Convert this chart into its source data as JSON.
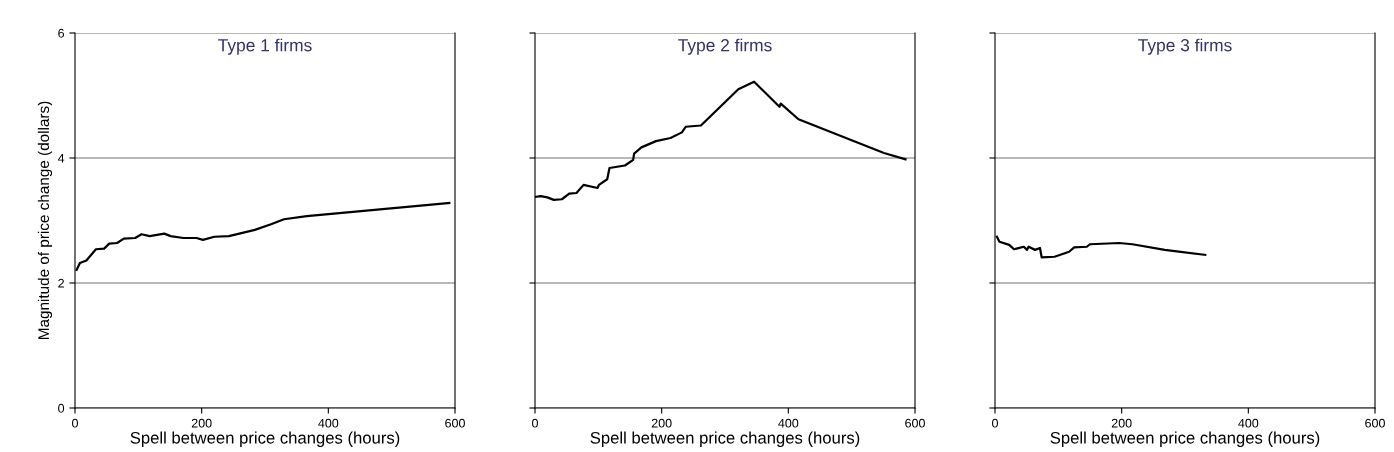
{
  "chart_data": [
    {
      "type": "line",
      "title": "Type 1 firms",
      "xlabel": "Spell between price changes (hours)",
      "ylabel": "Magnitude of price change (dollars)",
      "xlim": [
        0,
        600
      ],
      "xticks": [
        0,
        200,
        400,
        600
      ],
      "ylim": [
        0,
        6
      ],
      "yticks": [
        0,
        2,
        4,
        6
      ],
      "grid": "y",
      "series": [
        {
          "color": "#000000",
          "x": [
            2.6,
            7.7,
            18,
            33,
            46,
            54,
            66.5,
            77,
            95,
            105,
            118,
            141,
            151,
            171,
            192,
            202,
            220,
            243,
            284,
            309.5,
            330,
            366,
            591
          ],
          "values": [
            2.21,
            2.32,
            2.36,
            2.54,
            2.55,
            2.63,
            2.64,
            2.71,
            2.72,
            2.78,
            2.75,
            2.79,
            2.75,
            2.72,
            2.72,
            2.69,
            2.74,
            2.75,
            2.85,
            2.94,
            3.02,
            3.07,
            3.28
          ]
        }
      ]
    },
    {
      "type": "line",
      "title": "Type 2 firms",
      "xlabel": "Spell between price changes (hours)",
      "xlim": [
        0,
        600
      ],
      "xticks": [
        0,
        200,
        400,
        600
      ],
      "ylim": [
        0,
        6
      ],
      "yticks": [
        0,
        2,
        4,
        6
      ],
      "grid": "y",
      "tick_labels": "x",
      "series": [
        {
          "color": "#000000",
          "x": [
            1.5,
            9,
            19.5,
            29.6,
            42.5,
            54,
            65.5,
            76.7,
            98.7,
            101,
            114,
            117.6,
            142,
            155,
            156.5,
            168,
            191,
            214,
            232,
            238,
            262,
            321,
            346,
            386,
            388,
            416,
            551,
            585
          ],
          "values": [
            3.38,
            3.39,
            3.37,
            3.33,
            3.34,
            3.43,
            3.44,
            3.57,
            3.52,
            3.57,
            3.66,
            3.84,
            3.88,
            3.97,
            4.07,
            4.17,
            4.27,
            4.32,
            4.41,
            4.5,
            4.52,
            5.1,
            5.22,
            4.82,
            4.87,
            4.62,
            4.08,
            3.98
          ]
        }
      ]
    },
    {
      "type": "line",
      "title": "Type 3 firms",
      "xlabel": "Spell between price changes (hours)",
      "xlim": [
        0,
        600
      ],
      "xticks": [
        0,
        200,
        400,
        600
      ],
      "ylim": [
        0,
        6
      ],
      "yticks": [
        0,
        2,
        4,
        6
      ],
      "grid": "y",
      "tick_labels": "x",
      "series": [
        {
          "color": "#000000",
          "x": [
            3,
            7,
            22.5,
            30,
            45.5,
            50.6,
            53,
            63.4,
            71,
            73.7,
            94,
            117,
            125,
            145,
            150,
            196,
            217,
            268,
            332
          ],
          "values": [
            2.74,
            2.66,
            2.61,
            2.54,
            2.58,
            2.53,
            2.58,
            2.53,
            2.56,
            2.41,
            2.42,
            2.5,
            2.57,
            2.58,
            2.62,
            2.64,
            2.62,
            2.53,
            2.45
          ]
        }
      ]
    }
  ]
}
